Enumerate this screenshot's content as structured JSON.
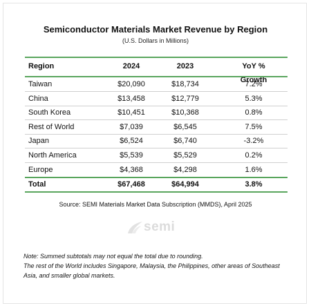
{
  "title": "Semiconductor Materials Market Revenue by Region",
  "subtitle": "(U.S. Dollars in Millions)",
  "table": {
    "headers": [
      "Region",
      "2024",
      "2023",
      "YoY % Growth"
    ],
    "rows": [
      [
        "Taiwan",
        "$20,090",
        "$18,734",
        "7.2%"
      ],
      [
        "China",
        "$13,458",
        "$12,779",
        "5.3%"
      ],
      [
        "South Korea",
        "$10,451",
        "$10,368",
        "0.8%"
      ],
      [
        "Rest of World",
        "$7,039",
        "$6,545",
        "7.5%"
      ],
      [
        "Japan",
        "$6,524",
        "$6,740",
        "-3.2%"
      ],
      [
        "North America",
        "$5,539",
        "$5,529",
        "0.2%"
      ],
      [
        "Europe",
        "$4,368",
        "$4,298",
        "1.6%"
      ]
    ],
    "total": [
      "Total",
      "$67,468",
      "$64,994",
      "3.8%"
    ]
  },
  "source": "Source: SEMI Materials Market Data Subscription (MMDS), April 2025",
  "logo": {
    "text": "semi",
    "color": "#dcdcdc"
  },
  "notes": [
    "Note: Summed subtotals may not equal the total due to rounding.",
    "The rest of the World includes Singapore, Malaysia, the Philippines, other areas of Southeast Asia, and smaller global markets."
  ],
  "colors": {
    "accent_line": "#58a55c",
    "divider": "#cfcfcf"
  }
}
